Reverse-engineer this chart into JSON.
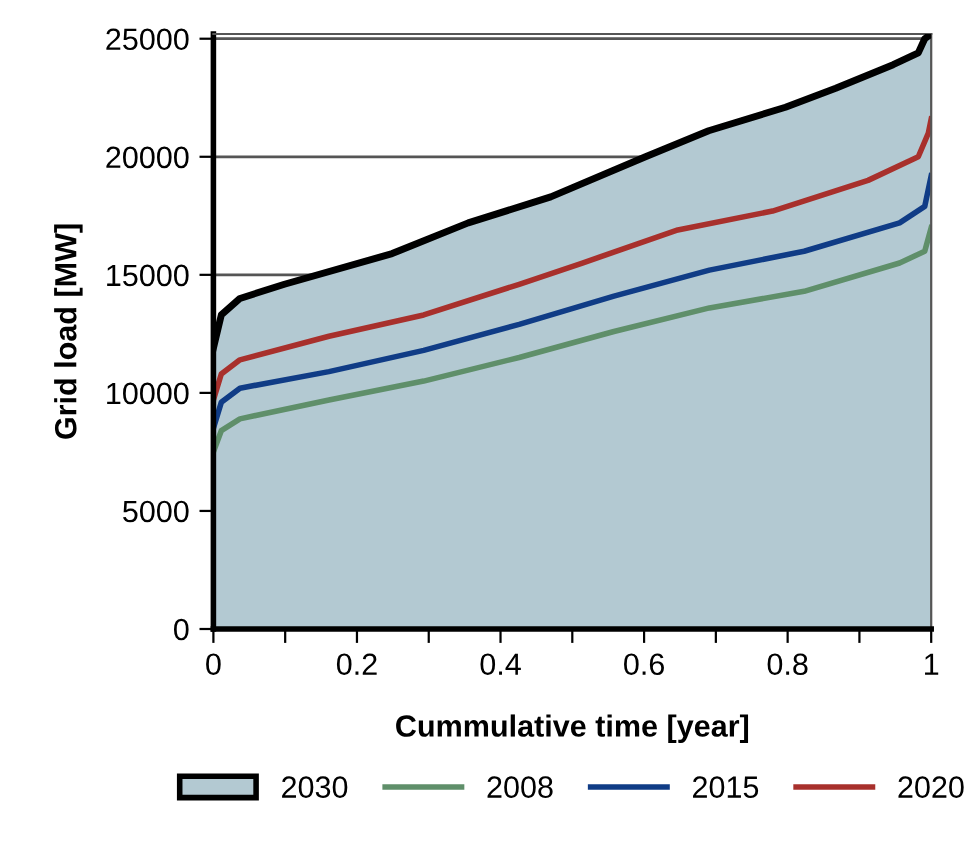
{
  "chart_data": {
    "type": "line",
    "xlabel": "Cummulative time [year]",
    "ylabel": "Grid load [MW]",
    "xlim": [
      0,
      1
    ],
    "xticks": [
      0,
      {
        "value": 0.1,
        "label": null
      },
      0.2,
      {
        "value": 0.3,
        "label": null
      },
      0.4,
      {
        "value": 0.5,
        "label": null
      },
      0.6,
      {
        "value": 0.7,
        "label": null
      },
      0.8,
      {
        "value": 0.9,
        "label": null
      },
      1
    ],
    "ylim": [
      0,
      25200
    ],
    "yticks": [
      0,
      5000,
      10000,
      15000,
      20000,
      25000
    ],
    "grid": "y",
    "legend": "bottom",
    "marker": "none",
    "line_style": "solid",
    "series": [
      {
        "name": "2030",
        "type": "area",
        "color": "#000000",
        "x": [
          0,
          0.011,
          0.037,
          0.099,
          0.249,
          0.355,
          0.47,
          0.602,
          0.69,
          0.797,
          0.867,
          0.947,
          0.982,
          0.991,
          1.0
        ],
        "values": [
          11900,
          13300,
          14000,
          14600,
          15900,
          17200,
          18300,
          20000,
          21100,
          22100,
          22900,
          23900,
          24400,
          25000,
          25200
        ]
      },
      {
        "name": "2008",
        "color": "#5f8f6a",
        "x": [
          0,
          0.011,
          0.037,
          0.161,
          0.293,
          0.426,
          0.558,
          0.691,
          0.823,
          0.956,
          0.991,
          1.0
        ],
        "values": [
          7500,
          8400,
          8900,
          9700,
          10500,
          11500,
          12600,
          13600,
          14300,
          15500,
          16000,
          17000
        ]
      },
      {
        "name": "2015",
        "color": "#103c86",
        "x": [
          0,
          0.011,
          0.037,
          0.161,
          0.293,
          0.426,
          0.558,
          0.691,
          0.823,
          0.956,
          0.991,
          1.0
        ],
        "values": [
          8500,
          9600,
          10200,
          10900,
          11800,
          12900,
          14100,
          15200,
          16000,
          17200,
          17900,
          19200
        ]
      },
      {
        "name": "2020",
        "color": "#a8302c",
        "x": [
          0,
          0.011,
          0.037,
          0.161,
          0.293,
          0.426,
          0.514,
          0.647,
          0.779,
          0.912,
          0.982,
          0.996,
          1.0
        ],
        "values": [
          9700,
          10800,
          11400,
          12400,
          13300,
          14600,
          15500,
          16900,
          17700,
          19000,
          20000,
          21000,
          21600
        ]
      }
    ]
  }
}
